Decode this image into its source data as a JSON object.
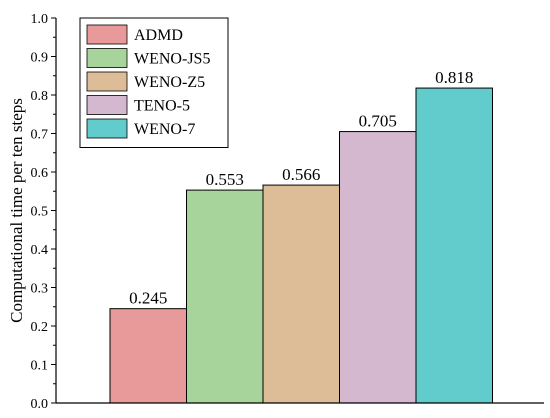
{
  "chart_data": {
    "type": "bar",
    "ylabel": "Computational time per ten steps",
    "xlabel": "",
    "ylim": [
      0,
      1.0
    ],
    "yticks": [
      "0.0",
      "0.1",
      "0.2",
      "0.3",
      "0.4",
      "0.5",
      "0.6",
      "0.7",
      "0.8",
      "0.9",
      "1.0"
    ],
    "grid": false,
    "legend_position": "top-left",
    "series": [
      {
        "name": "ADMD",
        "value": 0.245,
        "label": "0.245",
        "color": "#E89A9A"
      },
      {
        "name": "WENO-JS5",
        "value": 0.553,
        "label": "0.553",
        "color": "#A6D49A"
      },
      {
        "name": "WENO-Z5",
        "value": 0.566,
        "label": "0.566",
        "color": "#DDBD98"
      },
      {
        "name": "TENO-5",
        "value": 0.705,
        "label": "0.705",
        "color": "#D4B8D0"
      },
      {
        "name": "WENO-7",
        "value": 0.818,
        "label": "0.818",
        "color": "#62CBCB"
      }
    ]
  }
}
